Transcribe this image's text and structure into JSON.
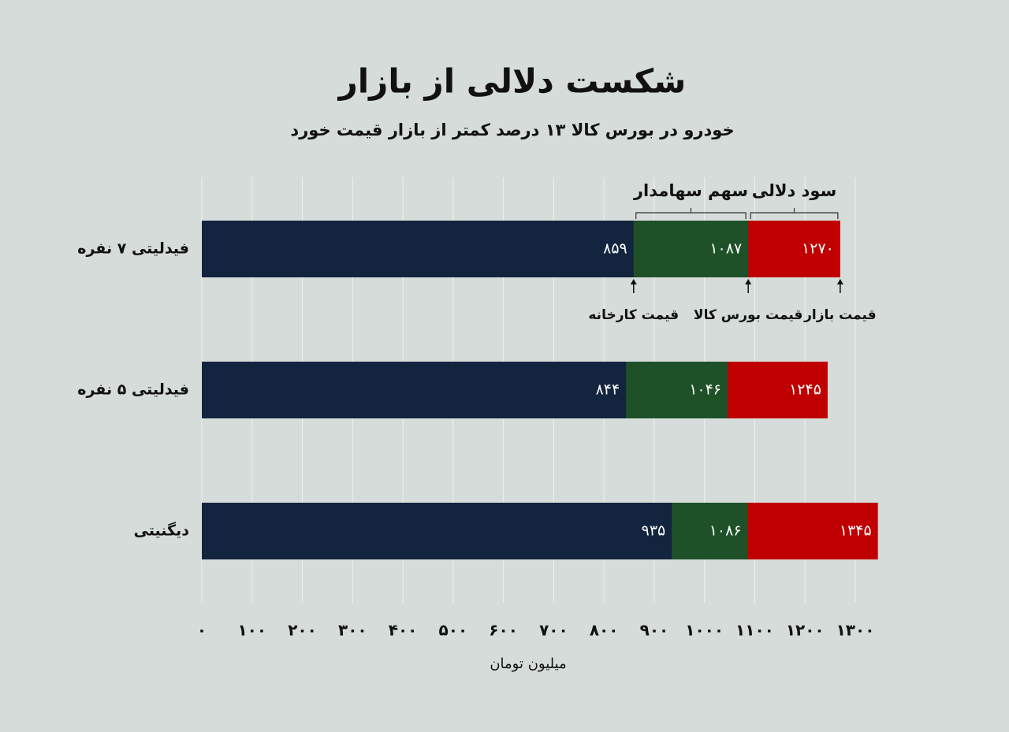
{
  "chart_data": {
    "type": "overlap-bar",
    "title": "شکست دلالی از بازار",
    "subtitle": "خودرو در بورس کالا ۱۳ درصد کمتر از بازار قیمت خورد",
    "categories": [
      "فیدلیتی ۷ نفره",
      "فیدلیتی ۵ نفره",
      "دیگنیتی"
    ],
    "series": [
      {
        "name": "قیمت کارخانه",
        "color": "#13243f",
        "values": [
          859,
          844,
          935
        ],
        "value_labels": [
          "۸۵۹",
          "۸۴۴",
          "۹۳۵"
        ]
      },
      {
        "name": "قیمت بورس کالا",
        "color": "#1e5128",
        "values": [
          1087,
          1046,
          1086
        ],
        "value_labels": [
          "۱۰۸۷",
          "۱۰۴۶",
          "۱۰۸۶"
        ]
      },
      {
        "name": "قیمت بازار",
        "color": "#c00000",
        "values": [
          1270,
          1245,
          1345
        ],
        "value_labels": [
          "۱۲۷۰",
          "۱۲۴۵",
          "۱۳۴۵"
        ]
      }
    ],
    "annotations": [
      "سهم سهامدار",
      "سود دلالی"
    ],
    "xlabel": "میلیون تومان",
    "xlim": [
      0,
      1300
    ],
    "xticks": [
      {
        "value": 0,
        "label": "۰"
      },
      {
        "value": 100,
        "label": "۱۰۰"
      },
      {
        "value": 200,
        "label": "۲۰۰"
      },
      {
        "value": 300,
        "label": "۳۰۰"
      },
      {
        "value": 400,
        "label": "۴۰۰"
      },
      {
        "value": 500,
        "label": "۵۰۰"
      },
      {
        "value": 600,
        "label": "۶۰۰"
      },
      {
        "value": 700,
        "label": "۷۰۰"
      },
      {
        "value": 800,
        "label": "۸۰۰"
      },
      {
        "value": 900,
        "label": "۹۰۰"
      },
      {
        "value": 1000,
        "label": "۱۰۰۰"
      },
      {
        "value": 1100,
        "label": "۱۱۰۰"
      },
      {
        "value": 1200,
        "label": "۱۲۰۰"
      },
      {
        "value": 1300,
        "label": "۱۳۰۰"
      }
    ],
    "grid": true
  }
}
